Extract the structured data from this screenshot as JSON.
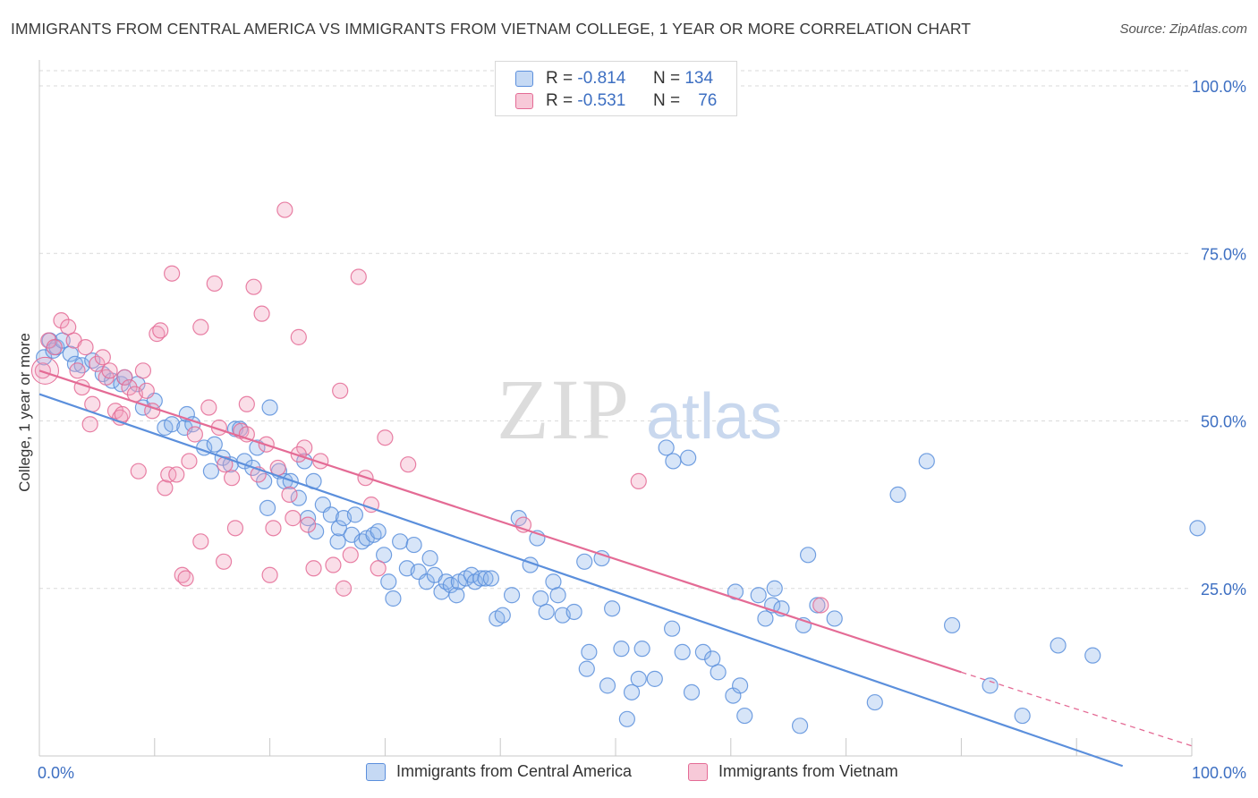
{
  "header": {
    "title": "IMMIGRANTS FROM CENTRAL AMERICA VS IMMIGRANTS FROM VIETNAM COLLEGE, 1 YEAR OR MORE CORRELATION CHART",
    "source": "Source: ZipAtlas.com"
  },
  "watermark": {
    "zip": "ZIP",
    "atlas": "atlas"
  },
  "legend": {
    "r_label": "R =",
    "n_label": "N =",
    "items": [
      {
        "r": "-0.814",
        "n": "134",
        "color": "#5b8fdc"
      },
      {
        "r": "-0.531",
        "n": "76",
        "color": "#e46b95"
      }
    ]
  },
  "bottom_legend": [
    "Immigrants from Central America",
    "Immigrants from Vietnam"
  ],
  "chart_data": {
    "type": "scatter",
    "title": "IMMIGRANTS FROM CENTRAL AMERICA VS IMMIGRANTS FROM VIETNAM COLLEGE, 1 YEAR OR MORE CORRELATION CHART",
    "xlabel": "",
    "ylabel": "College, 1 year or more",
    "xlim": [
      0,
      100
    ],
    "ylim": [
      0,
      100
    ],
    "x_tick_labels": [
      "0.0%",
      "100.0%"
    ],
    "y_tick_labels": [
      "25.0%",
      "50.0%",
      "75.0%",
      "100.0%"
    ],
    "y_ticks": [
      25,
      50,
      75,
      100
    ],
    "grid": true,
    "legend_position": "top-center",
    "series": [
      {
        "name": "Immigrants from Central America",
        "color": "#5b8fdc",
        "r": -0.814,
        "n": 134,
        "trend": {
          "x0": 0,
          "y0": 54,
          "x1": 94,
          "y1": -1.5
        },
        "points": [
          [
            0.4,
            59.5
          ],
          [
            0.9,
            62
          ],
          [
            1.2,
            60.5
          ],
          [
            1.5,
            61
          ],
          [
            2,
            62
          ],
          [
            2.7,
            60
          ],
          [
            3.1,
            58.5
          ],
          [
            3.7,
            58.3
          ],
          [
            4.6,
            59
          ],
          [
            5.5,
            57
          ],
          [
            6.3,
            56
          ],
          [
            7.1,
            55.5
          ],
          [
            7.4,
            56.5
          ],
          [
            8.5,
            55.5
          ],
          [
            9,
            52
          ],
          [
            10,
            53
          ],
          [
            10.9,
            49
          ],
          [
            11.5,
            49.5
          ],
          [
            12.6,
            49
          ],
          [
            12.8,
            51
          ],
          [
            13.3,
            49.5
          ],
          [
            14.3,
            46
          ],
          [
            14.9,
            42.5
          ],
          [
            15.2,
            46.5
          ],
          [
            15.9,
            44.5
          ],
          [
            16.6,
            43.5
          ],
          [
            17,
            48.8
          ],
          [
            17.4,
            48.8
          ],
          [
            17.8,
            44
          ],
          [
            18.5,
            43
          ],
          [
            18.9,
            46
          ],
          [
            19.5,
            41
          ],
          [
            19.8,
            37
          ],
          [
            20,
            52
          ],
          [
            20.8,
            42.5
          ],
          [
            21.3,
            41
          ],
          [
            21.8,
            41
          ],
          [
            22.5,
            38.5
          ],
          [
            23,
            44
          ],
          [
            23.3,
            35.5
          ],
          [
            23.8,
            41
          ],
          [
            24,
            33.5
          ],
          [
            24.6,
            37.5
          ],
          [
            25.3,
            36
          ],
          [
            25.9,
            32
          ],
          [
            26,
            34
          ],
          [
            26.4,
            35.5
          ],
          [
            27.1,
            33
          ],
          [
            27.4,
            36
          ],
          [
            28,
            32
          ],
          [
            28.4,
            32.5
          ],
          [
            29,
            33
          ],
          [
            29.4,
            33.5
          ],
          [
            29.9,
            30
          ],
          [
            30.3,
            26
          ],
          [
            30.7,
            23.5
          ],
          [
            31.3,
            32
          ],
          [
            31.9,
            28
          ],
          [
            32.5,
            31.5
          ],
          [
            32.9,
            27.5
          ],
          [
            33.6,
            26
          ],
          [
            33.9,
            29.5
          ],
          [
            34.3,
            27
          ],
          [
            34.9,
            24.5
          ],
          [
            35.3,
            26
          ],
          [
            35.7,
            25.5
          ],
          [
            36.2,
            24
          ],
          [
            36.4,
            26
          ],
          [
            37,
            26.5
          ],
          [
            37.5,
            27
          ],
          [
            37.8,
            26
          ],
          [
            38.3,
            26.5
          ],
          [
            38.7,
            26.5
          ],
          [
            39.2,
            26.5
          ],
          [
            39.7,
            20.5
          ],
          [
            40.2,
            21
          ],
          [
            41,
            24
          ],
          [
            41.6,
            35.5
          ],
          [
            42.6,
            28.5
          ],
          [
            43.2,
            32.5
          ],
          [
            43.5,
            23.5
          ],
          [
            44,
            21.5
          ],
          [
            44.6,
            26
          ],
          [
            45,
            24
          ],
          [
            45.4,
            21
          ],
          [
            46.4,
            21.5
          ],
          [
            47.3,
            29
          ],
          [
            47.7,
            15.5
          ],
          [
            48.8,
            29.5
          ],
          [
            49.3,
            10.5
          ],
          [
            49.7,
            22
          ],
          [
            50.5,
            16
          ],
          [
            51,
            5.5
          ],
          [
            51.4,
            9.5
          ],
          [
            52,
            11.5
          ],
          [
            52.3,
            16
          ],
          [
            53.4,
            11.5
          ],
          [
            54.4,
            46
          ],
          [
            54.9,
            19
          ],
          [
            55.8,
            15.5
          ],
          [
            56.3,
            44.5
          ],
          [
            56.6,
            9.5
          ],
          [
            57.6,
            15.5
          ],
          [
            58.4,
            14.5
          ],
          [
            58.9,
            12.5
          ],
          [
            60.2,
            9
          ],
          [
            60.4,
            24.5
          ],
          [
            60.8,
            10.5
          ],
          [
            61.2,
            6
          ],
          [
            62.4,
            24
          ],
          [
            63,
            20.5
          ],
          [
            63.6,
            22.5
          ],
          [
            63.8,
            25
          ],
          [
            64.4,
            22
          ],
          [
            66,
            4.5
          ],
          [
            66.3,
            19.5
          ],
          [
            66.7,
            30
          ],
          [
            67.5,
            22.5
          ],
          [
            69,
            20.5
          ],
          [
            72.5,
            8
          ],
          [
            74.5,
            39
          ],
          [
            77,
            44
          ],
          [
            79.2,
            19.5
          ],
          [
            82.5,
            10.5
          ],
          [
            85.3,
            6
          ],
          [
            88.4,
            16.5
          ],
          [
            91.4,
            15
          ],
          [
            100.5,
            34
          ],
          [
            55,
            44
          ],
          [
            47.5,
            13
          ]
        ]
      },
      {
        "name": "Immigrants from Vietnam",
        "color": "#e46b95",
        "r": -0.531,
        "n": 76,
        "trend": {
          "x0": 0,
          "y0": 57.5,
          "x1": 80,
          "y1": 12.5,
          "dash_x1": 100,
          "dash_y1": 1.5
        },
        "points": [
          [
            0.3,
            57.5
          ],
          [
            0.8,
            62
          ],
          [
            1.3,
            61
          ],
          [
            1.9,
            65
          ],
          [
            2.5,
            64
          ],
          [
            3,
            62
          ],
          [
            3.3,
            57.5
          ],
          [
            3.7,
            55
          ],
          [
            4,
            61
          ],
          [
            4.4,
            49.5
          ],
          [
            4.6,
            52.5
          ],
          [
            5,
            58.5
          ],
          [
            5.5,
            59.5
          ],
          [
            5.8,
            56.5
          ],
          [
            6.1,
            57.5
          ],
          [
            6.6,
            51.5
          ],
          [
            7,
            50.5
          ],
          [
            7.2,
            51
          ],
          [
            7.4,
            56.5
          ],
          [
            7.8,
            55
          ],
          [
            8.3,
            54
          ],
          [
            8.6,
            42.5
          ],
          [
            9,
            57.5
          ],
          [
            9.3,
            54.5
          ],
          [
            9.8,
            51.5
          ],
          [
            10.2,
            63
          ],
          [
            10.5,
            63.5
          ],
          [
            10.9,
            40
          ],
          [
            11.2,
            42
          ],
          [
            11.5,
            72
          ],
          [
            11.9,
            42
          ],
          [
            12.4,
            27
          ],
          [
            12.7,
            26.5
          ],
          [
            13,
            44
          ],
          [
            13.5,
            48
          ],
          [
            14,
            64
          ],
          [
            14.7,
            52
          ],
          [
            15.2,
            70.5
          ],
          [
            15.6,
            49
          ],
          [
            16.1,
            43.5
          ],
          [
            16.7,
            41.5
          ],
          [
            17,
            34
          ],
          [
            17.5,
            48.5
          ],
          [
            18,
            48
          ],
          [
            18.6,
            70
          ],
          [
            19,
            42
          ],
          [
            19.3,
            66
          ],
          [
            19.7,
            46.5
          ],
          [
            20.3,
            34
          ],
          [
            20.7,
            43
          ],
          [
            21.3,
            81.5
          ],
          [
            21.7,
            39
          ],
          [
            22,
            35.5
          ],
          [
            22.5,
            62.5
          ],
          [
            23,
            46
          ],
          [
            23.3,
            34.5
          ],
          [
            23.8,
            28
          ],
          [
            24.4,
            44
          ],
          [
            25.5,
            28.5
          ],
          [
            26.1,
            54.5
          ],
          [
            26.4,
            25
          ],
          [
            27,
            30
          ],
          [
            27.7,
            71.5
          ],
          [
            28.3,
            41.5
          ],
          [
            28.8,
            37.5
          ],
          [
            29.4,
            28
          ],
          [
            30,
            47.5
          ],
          [
            32,
            43.5
          ],
          [
            42,
            34.5
          ],
          [
            52,
            41
          ],
          [
            67.8,
            22.5
          ],
          [
            16,
            29
          ],
          [
            20,
            27
          ],
          [
            14,
            32
          ],
          [
            18,
            52.5
          ],
          [
            22.5,
            45
          ]
        ]
      }
    ]
  }
}
